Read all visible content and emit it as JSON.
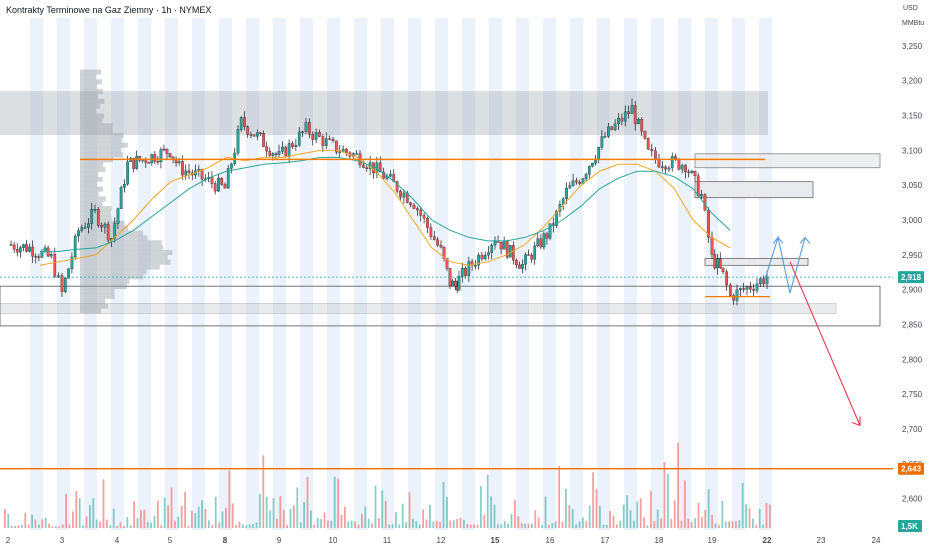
{
  "header": {
    "title": "Kontrakty Terminowe na Gaz Ziemny · 1h · NYMEX",
    "currency": "USD",
    "unit": "MMBtu"
  },
  "colors": {
    "up": "#26a69a",
    "down": "#ef5350",
    "resistance_line": "#f57c00",
    "ma_fast": "#f5a623",
    "ma_slow": "#26a69a",
    "session_band": "#dbe7f8",
    "zone": "#9aa3ad",
    "projection_up": "#5b9bd5",
    "projection_down": "#e53950",
    "last_price_badge": "#26a69a",
    "level_badge": "#ef6c00"
  },
  "badges": {
    "last_price": "2,918",
    "level": "2,643",
    "volume": "1,5K"
  },
  "chart_data": {
    "type": "candlestick",
    "title": "Kontrakty Terminowe na Gaz Ziemny · 1h · NYMEX",
    "xlabel": "",
    "ylabel": "",
    "y_ticks": [
      "3,250",
      "3,200",
      "3,150",
      "3,100",
      "3,050",
      "3,000",
      "2,950",
      "2,900",
      "2,850",
      "2,800",
      "2,750",
      "2,700",
      "2,650",
      "2,600"
    ],
    "x_ticks": [
      {
        "label": "2",
        "day": 2
      },
      {
        "label": "3",
        "day": 3
      },
      {
        "label": "4",
        "day": 4
      },
      {
        "label": "5",
        "day": 5
      },
      {
        "label": "8",
        "day": 8
      },
      {
        "label": "9",
        "day": 9
      },
      {
        "label": "10",
        "day": 10
      },
      {
        "label": "11",
        "day": 11
      },
      {
        "label": "12",
        "day": 12
      },
      {
        "label": "15",
        "day": 15
      },
      {
        "label": "16",
        "day": 16
      },
      {
        "label": "17",
        "day": 17
      },
      {
        "label": "18",
        "day": 18
      },
      {
        "label": "19",
        "day": 19
      },
      {
        "label": "22",
        "day": 22
      },
      {
        "label": "23",
        "day": 23
      },
      {
        "label": "24",
        "day": 24
      }
    ],
    "ylim": [
      2555,
      3290
    ],
    "x_axis_domain_days": [
      2,
      24
    ],
    "price_path_days": [
      2,
      2.4,
      2.8,
      3.0,
      3.3,
      3.6,
      3.9,
      4.2,
      4.6,
      5.0,
      5.5,
      8.0,
      8.3,
      8.6,
      9.0,
      9.5,
      10.0,
      10.5,
      11.0,
      11.5,
      12.0,
      12.5,
      12.8,
      13.0,
      15.0,
      15.5,
      16.0,
      16.3,
      16.6,
      17.0,
      17.5,
      17.8,
      18.0,
      18.5,
      18.8,
      19.0,
      19.3,
      19.6,
      20.0,
      22.0
    ],
    "price_path": [
      2965,
      2960,
      2945,
      2895,
      2985,
      3010,
      2975,
      3080,
      3090,
      3100,
      3075,
      3045,
      3140,
      3120,
      3090,
      3130,
      3105,
      3090,
      3060,
      3025,
      2955,
      2910,
      2905,
      2915,
      2975,
      2935,
      2985,
      3040,
      3065,
      3120,
      3160,
      3095,
      3085,
      3080,
      3035,
      2945,
      2935,
      2920,
      2890,
      2918
    ],
    "ma_fast": [
      2935,
      2940,
      2945,
      2950,
      2975,
      3000,
      3030,
      3055,
      3065,
      3075,
      3090,
      3085,
      3090,
      3090,
      3095,
      3100,
      3100,
      3090,
      3070,
      3040,
      3000,
      2960,
      2940,
      2935,
      2940,
      2950,
      2965,
      2990,
      3020,
      3050,
      3070,
      3080,
      3080,
      3070,
      3045,
      3000,
      2975,
      2960
    ],
    "ma_slow": [
      2955,
      2955,
      2958,
      2960,
      2970,
      2985,
      3005,
      3025,
      3045,
      3060,
      3070,
      3075,
      3080,
      3082,
      3085,
      3090,
      3090,
      3085,
      3075,
      3055,
      3030,
      3000,
      2985,
      2975,
      2970,
      2970,
      2975,
      2985,
      3000,
      3020,
      3045,
      3060,
      3070,
      3070,
      3062,
      3045,
      3010,
      2985
    ],
    "resistance_level": 3087,
    "support_zone": [
      2848,
      2905
    ],
    "upper_zone": [
      3122,
      3185
    ],
    "reference_level": 2643,
    "last_price": 2918,
    "projection_up_path": [
      2915,
      2975,
      2895,
      2975
    ],
    "projection_down_path": [
      2940,
      2705
    ],
    "volume_peaks": [
      0.18,
      0.25,
      0.35,
      0.15,
      0.3,
      0.25,
      0.55,
      0.2,
      0.25,
      0.5,
      0.3,
      0.6,
      0.2,
      0.3,
      0.5,
      0.25,
      0.35,
      0.9,
      0.3,
      0.45,
      0.3,
      0.7,
      0.6,
      0.3,
      0.45,
      0.3,
      0.55,
      0.3,
      0.6,
      0.7,
      0.3,
      0.5,
      0.3,
      0.45,
      0.4,
      0.3,
      0.6,
      0.35,
      0.55,
      0.3,
      0.55,
      0.25,
      0.5,
      0.85,
      0.55,
      0.95,
      0.3,
      0.6,
      0.4,
      0.3
    ]
  }
}
